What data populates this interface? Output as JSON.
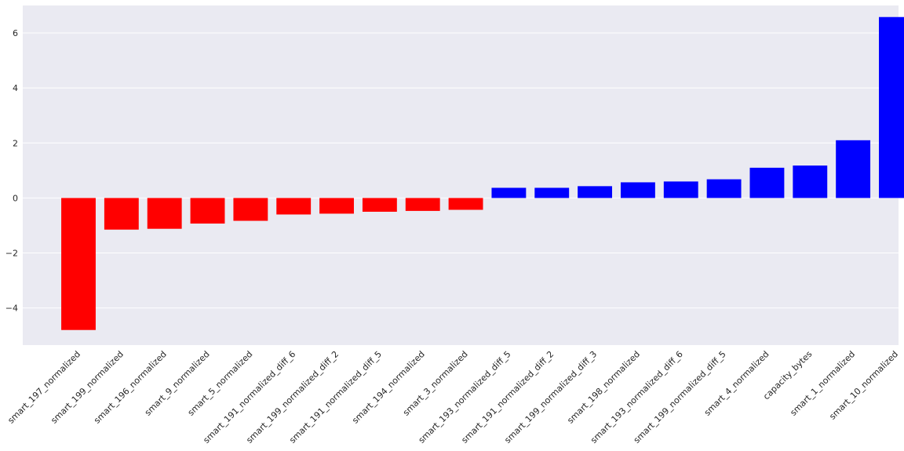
{
  "chart_data": {
    "type": "bar",
    "title": "",
    "xlabel": "",
    "ylabel": "",
    "categories": [
      "smart_197_normalized",
      "smart_199_normalized",
      "smart_196_normalized",
      "smart_9_normalized",
      "smart_5_normalized",
      "smart_191_normalized_diff_6",
      "smart_199_normalized_diff_2",
      "smart_191_normalized_diff_5",
      "smart_194_normalized",
      "smart_3_normalized",
      "smart_193_normalized_diff_5",
      "smart_191_normalized_diff_2",
      "smart_199_normalized_diff_3",
      "smart_198_normalized",
      "smart_193_normalized_diff_6",
      "smart_199_normalized_diff_5",
      "smart_4_normalized",
      "capacity_bytes",
      "smart_1_normalized",
      "smart_10_normalized"
    ],
    "values": [
      -4.8,
      -1.15,
      -1.12,
      -0.93,
      -0.83,
      -0.6,
      -0.57,
      -0.5,
      -0.47,
      -0.43,
      0.37,
      0.37,
      0.43,
      0.57,
      0.6,
      0.68,
      1.1,
      1.18,
      2.1,
      6.58
    ],
    "ylim": [
      -5.35,
      7.0
    ],
    "yticks": [
      -4,
      -2,
      0,
      2,
      4,
      6
    ],
    "ytick_labels": [
      "−4",
      "−2",
      "0",
      "2",
      "4",
      "6"
    ],
    "colors": {
      "negative": "#ff0000",
      "positive": "#0000ff",
      "background": "#eaeaf2",
      "grid": "#ffffff"
    },
    "grid": true,
    "legend": "none"
  }
}
